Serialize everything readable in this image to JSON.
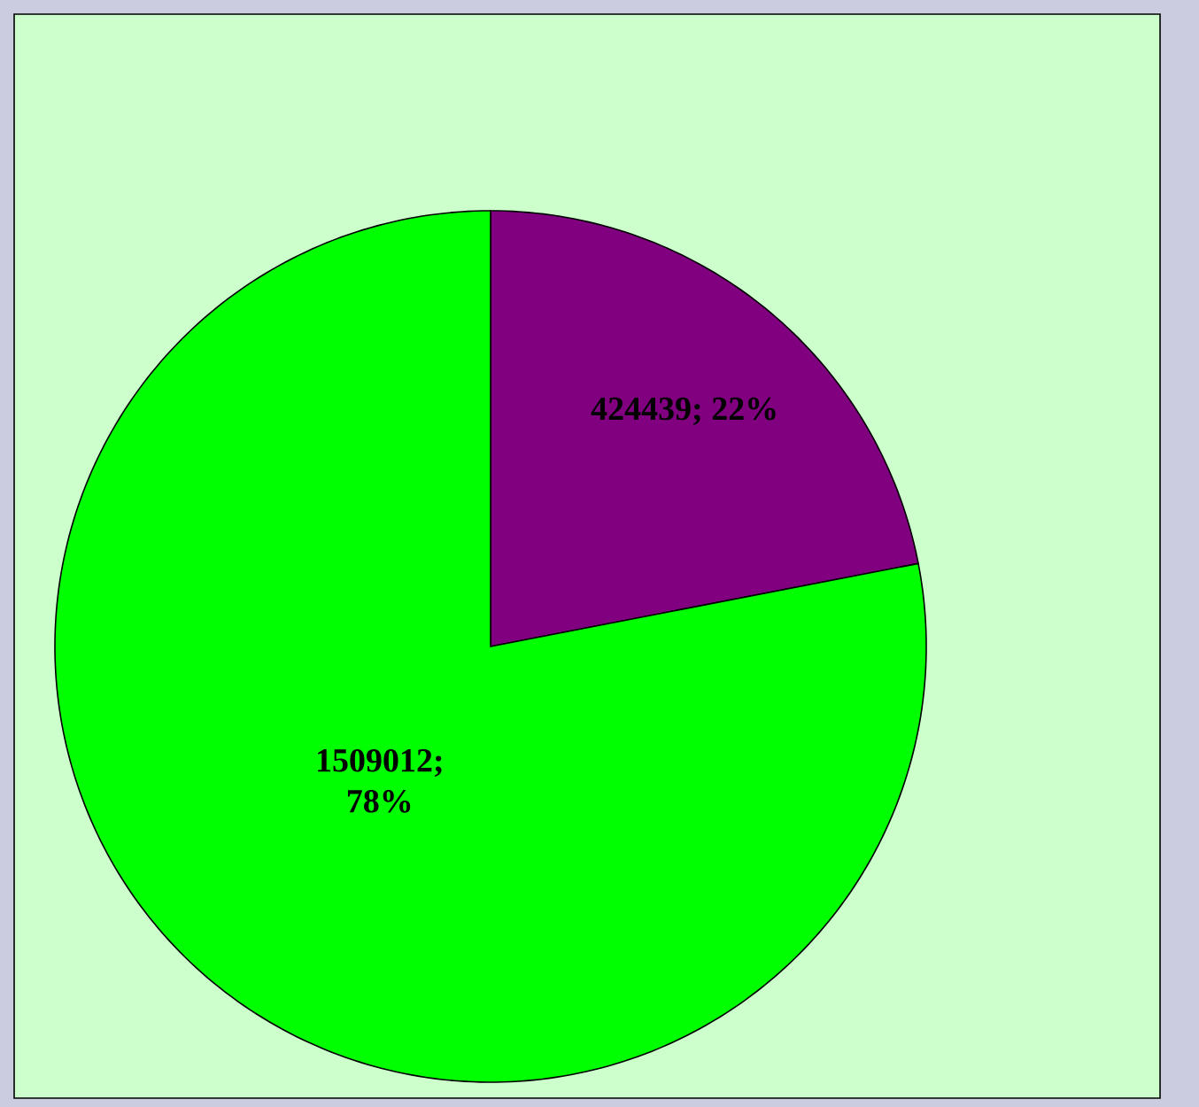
{
  "chart_data": {
    "type": "pie",
    "categories": [
      null,
      null
    ],
    "values": [
      424439,
      1509012
    ],
    "colors": [
      "#800080",
      "#00ff00"
    ],
    "value_labels": [
      "424439; 22%",
      "1509012; 78%"
    ]
  }
}
